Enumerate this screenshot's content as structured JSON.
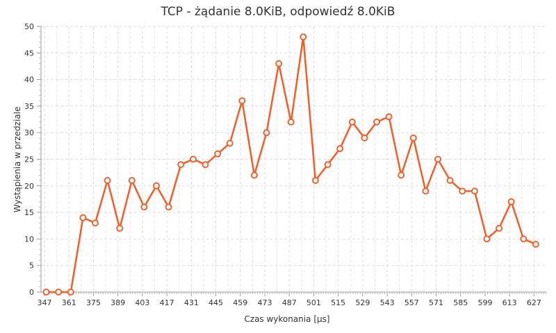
{
  "chart_data": {
    "type": "line",
    "title": "TCP - żądanie 8.0KiB, odpowiedź 8.0KiB",
    "xlabel": "Czas wykonania [µs]",
    "ylabel": "Wystąpienia w przedziale",
    "xlim": [
      345,
      634
    ],
    "ylim": [
      0,
      50
    ],
    "x_ticks": [
      "347",
      "361",
      "375",
      "389",
      "403",
      "417",
      "431",
      "445",
      "459",
      "473",
      "487",
      "501",
      "515",
      "529",
      "543",
      "557",
      "571",
      "585",
      "599",
      "613",
      "627"
    ],
    "y_ticks": [
      "0",
      "5",
      "10",
      "15",
      "20",
      "25",
      "30",
      "35",
      "40",
      "45",
      "50"
    ],
    "grid": true,
    "legend": false,
    "color": "#f0622d",
    "series": [
      {
        "x": [
          348,
          355,
          362,
          369,
          376,
          383,
          390,
          397,
          404,
          411,
          418,
          425,
          432,
          439,
          446,
          453,
          460,
          467,
          474,
          481,
          488,
          495,
          502,
          509,
          516,
          523,
          530,
          537,
          544,
          551,
          558,
          565,
          572,
          579,
          586,
          593,
          600,
          607,
          614,
          621,
          628
        ],
        "values": [
          0,
          0,
          0,
          14,
          13,
          21,
          12,
          21,
          16,
          20,
          16,
          24,
          25,
          24,
          26,
          28,
          36,
          22,
          30,
          43,
          32,
          48,
          21,
          24,
          27,
          32,
          29,
          32,
          33,
          22,
          29,
          19,
          25,
          21,
          19,
          19,
          10,
          12,
          17,
          10,
          9
        ]
      }
    ]
  }
}
